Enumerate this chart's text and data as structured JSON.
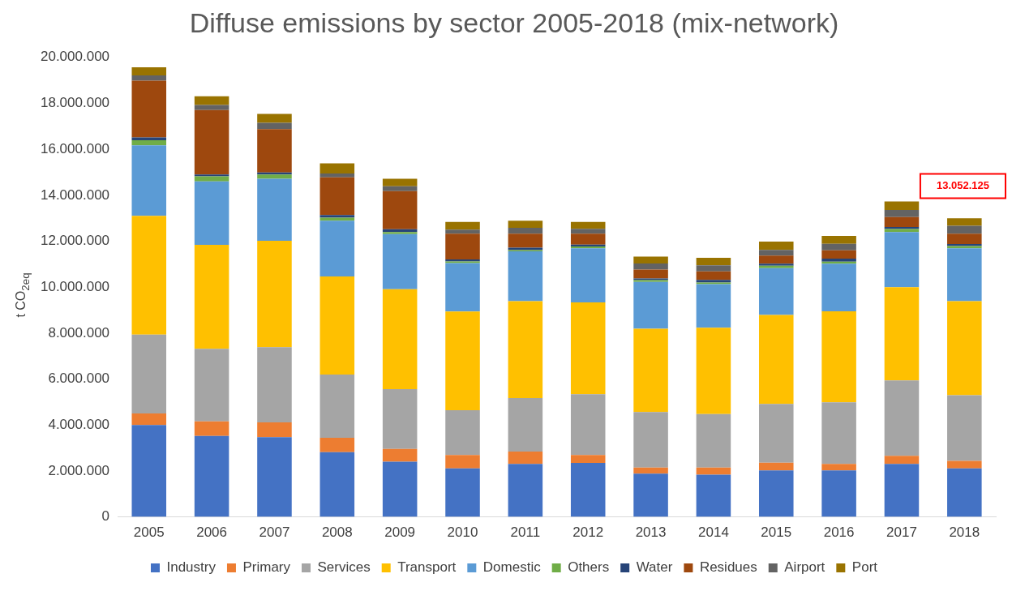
{
  "chart_data": {
    "type": "bar",
    "title": "Diffuse emissions by sector 2005-2018 (mix-network)",
    "ylabel": "t CO$_{2eq}$",
    "categories": [
      "2005",
      "2006",
      "2007",
      "2008",
      "2009",
      "2010",
      "2011",
      "2012",
      "2013",
      "2014",
      "2015",
      "2016",
      "2017",
      "2018"
    ],
    "stacked": true,
    "legend": "bottom",
    "ylim": [
      0,
      20000000
    ],
    "yticks": [
      0,
      {
        "value": 2000000,
        "label": "2.000.000"
      },
      {
        "value": 4000000,
        "label": "4.000.000"
      },
      {
        "value": 6000000,
        "label": "6.000.000"
      },
      {
        "value": 8000000,
        "label": "8.000.000"
      },
      {
        "value": 10000000,
        "label": "10.000.000"
      },
      {
        "value": 12000000,
        "label": "12.000.000"
      },
      {
        "value": 14000000,
        "label": "14.000.000"
      },
      {
        "value": 16000000,
        "label": "16.000.000"
      },
      {
        "value": 18000000,
        "label": "18.000.000"
      },
      {
        "value": 20000000,
        "label": "20.000.000"
      }
    ],
    "series": [
      {
        "name": "Industry",
        "color": "#4472c4",
        "values": [
          4000000,
          3520000,
          3470000,
          2820000,
          2400000,
          2110000,
          2310000,
          2350000,
          1880000,
          1840000,
          2020000,
          2020000,
          2310000,
          2110000
        ]
      },
      {
        "name": "Primary",
        "color": "#ed7d31",
        "values": [
          500000,
          640000,
          640000,
          620000,
          560000,
          580000,
          530000,
          340000,
          270000,
          310000,
          340000,
          290000,
          350000,
          330000
        ]
      },
      {
        "name": "Services",
        "color": "#a5a5a5",
        "values": [
          3430000,
          3160000,
          3280000,
          2760000,
          2600000,
          1950000,
          2330000,
          2650000,
          2410000,
          2330000,
          2560000,
          2680000,
          3280000,
          2860000
        ]
      },
      {
        "name": "Transport",
        "color": "#ffc000",
        "values": [
          5170000,
          4520000,
          4630000,
          4270000,
          4350000,
          4300000,
          4220000,
          4000000,
          3630000,
          3750000,
          3870000,
          3960000,
          4060000,
          4090000
        ]
      },
      {
        "name": "Domestic",
        "color": "#5b9bd5",
        "values": [
          3070000,
          2760000,
          2700000,
          2420000,
          2400000,
          2110000,
          2170000,
          2350000,
          2040000,
          1900000,
          2040000,
          2070000,
          2400000,
          2300000
        ]
      },
      {
        "name": "Others",
        "color": "#70ad47",
        "values": [
          220000,
          220000,
          180000,
          130000,
          90000,
          70000,
          50000,
          80000,
          80000,
          70000,
          100000,
          90000,
          130000,
          100000
        ]
      },
      {
        "name": "Water",
        "color": "#264478",
        "values": [
          130000,
          80000,
          90000,
          120000,
          120000,
          90000,
          110000,
          80000,
          70000,
          120000,
          90000,
          130000,
          90000,
          90000
        ]
      },
      {
        "name": "Residues",
        "color": "#9e480e",
        "values": [
          2470000,
          2810000,
          1890000,
          1640000,
          1660000,
          1120000,
          610000,
          480000,
          390000,
          370000,
          350000,
          360000,
          430000,
          450000
        ]
      },
      {
        "name": "Airport",
        "color": "#636363",
        "values": [
          230000,
          220000,
          270000,
          170000,
          210000,
          170000,
          250000,
          210000,
          260000,
          260000,
          250000,
          290000,
          310000,
          340000
        ]
      },
      {
        "name": "Port",
        "color": "#997300",
        "values": [
          350000,
          380000,
          390000,
          440000,
          330000,
          340000,
          310000,
          300000,
          300000,
          330000,
          360000,
          340000,
          370000,
          330000
        ]
      }
    ],
    "annotations": [
      "13.052.125"
    ]
  }
}
